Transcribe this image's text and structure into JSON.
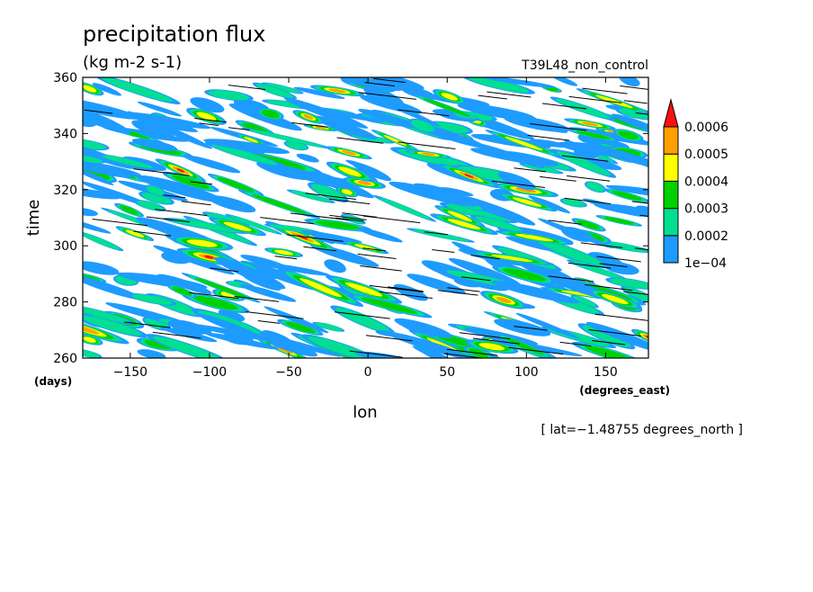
{
  "chart_data": {
    "type": "heatmap",
    "title": "precipitation flux",
    "units": "(kg m-2 s-1)",
    "experiment": "T39L48_non_control",
    "xlabel": "lon",
    "x_units": "(degrees_east)",
    "ylabel": "time",
    "y_units": "(days)",
    "xlim": [
      -180,
      177
    ],
    "ylim": [
      260,
      360
    ],
    "x_ticks": [
      -150,
      -100,
      -50,
      0,
      50,
      100,
      150
    ],
    "y_ticks": [
      260,
      280,
      300,
      320,
      340,
      360
    ],
    "x_tick_labels": [
      "−150",
      "−100",
      "−50",
      "0",
      "50",
      "100",
      "150"
    ],
    "y_tick_labels": [
      "260",
      "280",
      "300",
      "320",
      "340",
      "360"
    ],
    "annotation": "[ lat=−1.48755 degrees_north ]",
    "colorbar": {
      "levels": [
        0.0001,
        0.0002,
        0.0003,
        0.0004,
        0.0005,
        0.0006
      ],
      "labels": [
        "1e−04",
        "0.0002",
        "0.0003",
        "0.0004",
        "0.0005",
        "0.0006"
      ],
      "colors": [
        "#1e9bff",
        "#00e090",
        "#00d000",
        "#ffff00",
        "#ffa000",
        "#ff1010"
      ],
      "extend": "max"
    }
  }
}
